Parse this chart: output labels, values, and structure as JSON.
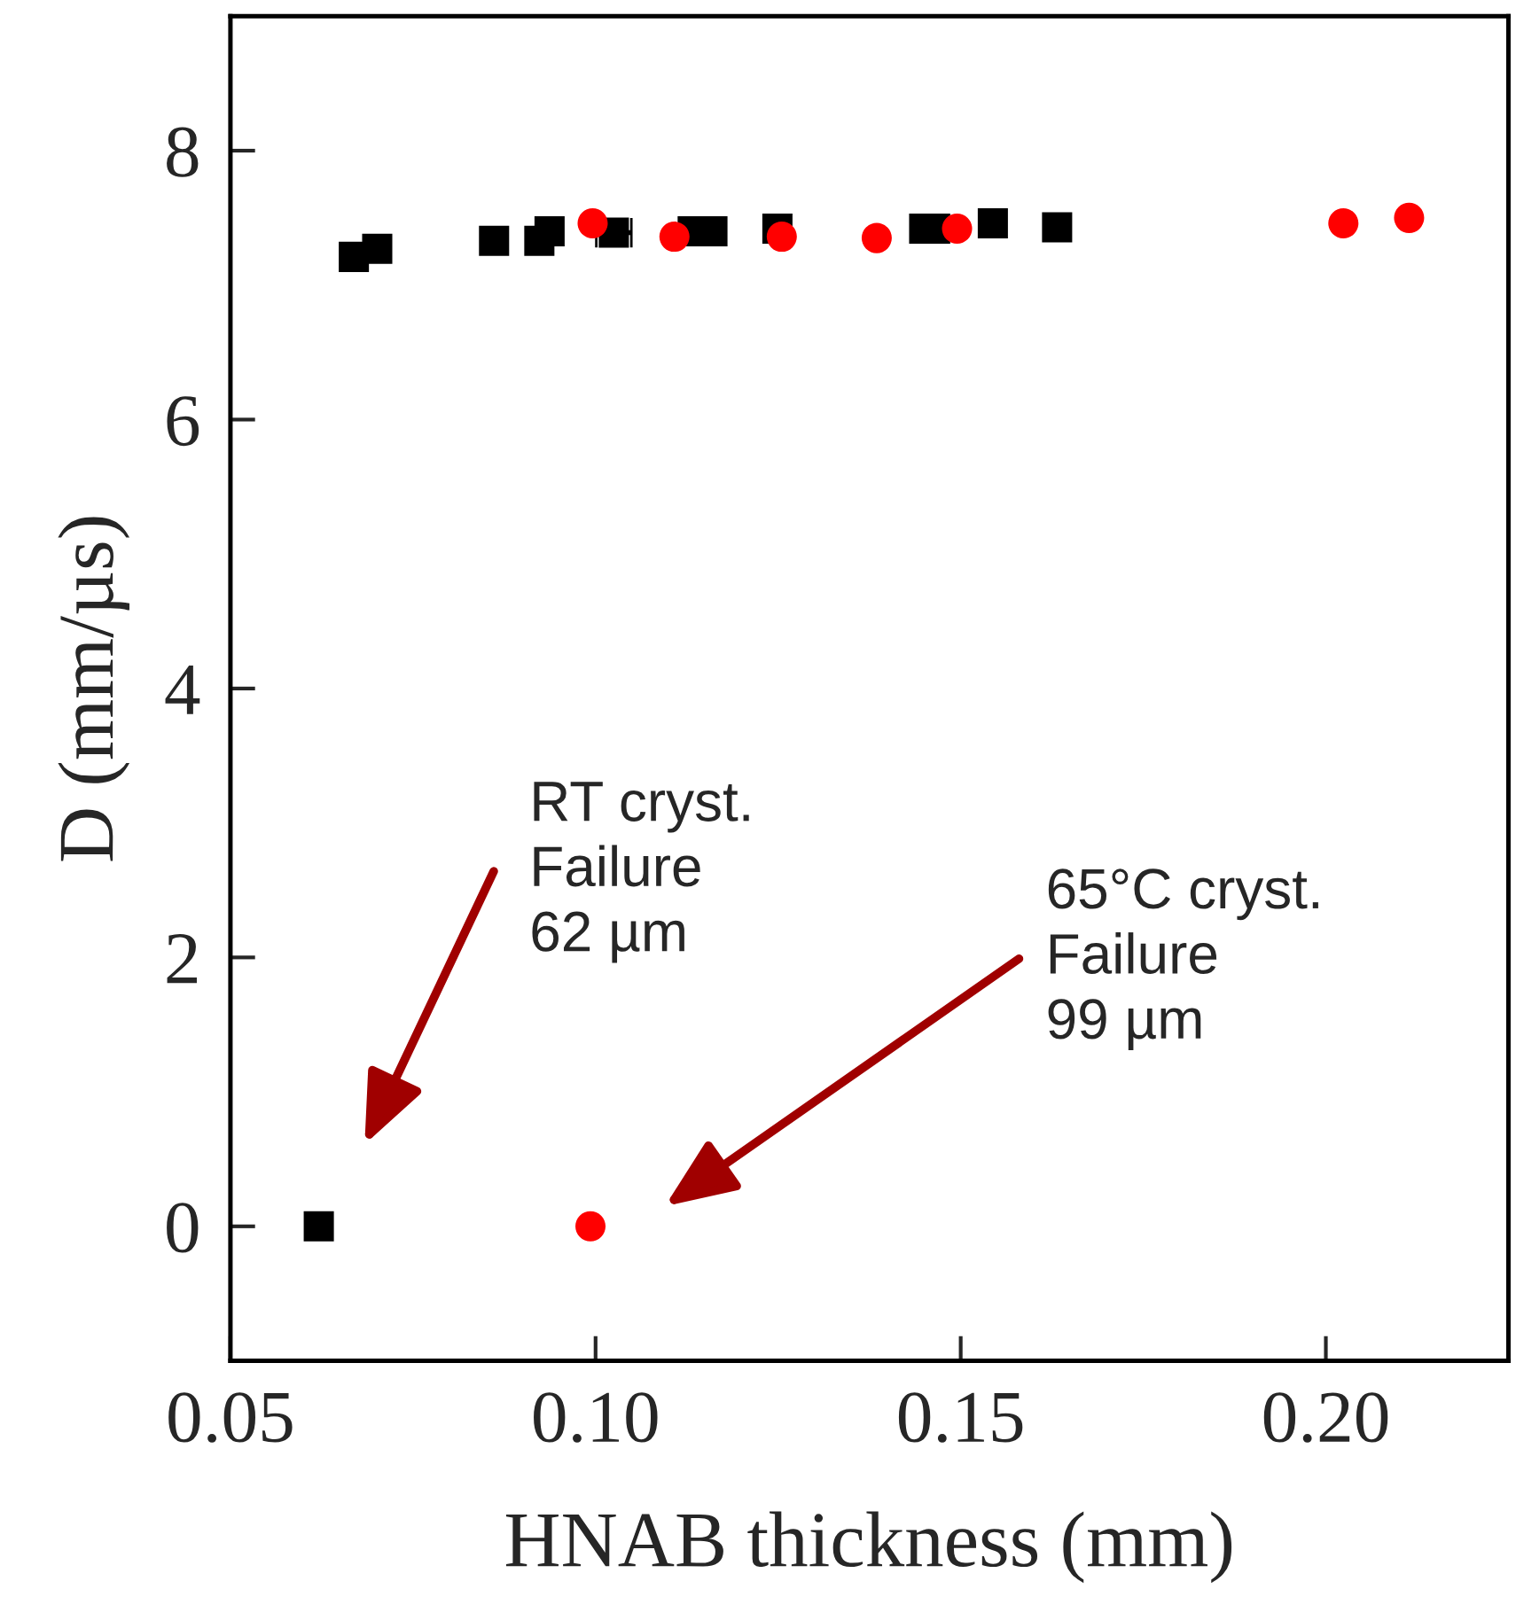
{
  "chart_data": {
    "type": "scatter",
    "xlabel": "HNAB thickness (mm)",
    "ylabel": "D (mm/µs)",
    "xlim": [
      0.05,
      0.225
    ],
    "xticks": [
      {
        "value": 0.05,
        "label": "0.05"
      },
      {
        "value": 0.1,
        "label": "0.10"
      },
      {
        "value": 0.15,
        "label": "0.15"
      },
      {
        "value": 0.2,
        "label": "0.20"
      }
    ],
    "ylim": [
      -1,
      9
    ],
    "yticks": [
      0,
      2,
      4,
      6,
      8
    ],
    "grid": false,
    "legend": false,
    "series": [
      {
        "color": "#000000",
        "marker": "square",
        "x": [
          0.0621,
          0.0669,
          0.0701,
          0.0861,
          0.0923,
          0.0937,
          0.1025,
          0.1133,
          0.116,
          0.1249,
          0.145,
          0.1465,
          0.1544,
          0.1632
        ],
        "values": [
          0.0,
          7.21,
          7.27,
          7.33,
          7.33,
          7.4,
          7.39,
          7.4,
          7.4,
          7.42,
          7.42,
          7.42,
          7.46,
          7.43
        ],
        "xerrors": [
          null,
          null,
          null,
          null,
          null,
          null,
          0.0024,
          null,
          null,
          null,
          null,
          null,
          null,
          null
        ]
      },
      {
        "color": "#ff0000",
        "marker": "circle",
        "x": [
          0.0993,
          0.0996,
          0.1108,
          0.1255,
          0.1385,
          0.1495,
          0.2024,
          0.2114
        ],
        "values": [
          0.0,
          7.46,
          7.36,
          7.36,
          7.35,
          7.42,
          7.46,
          7.5
        ]
      }
    ],
    "annotations": [
      "RT cryst.\nFailure\n62 µm",
      "65°C cryst.\nFailure\n99 µm"
    ]
  }
}
